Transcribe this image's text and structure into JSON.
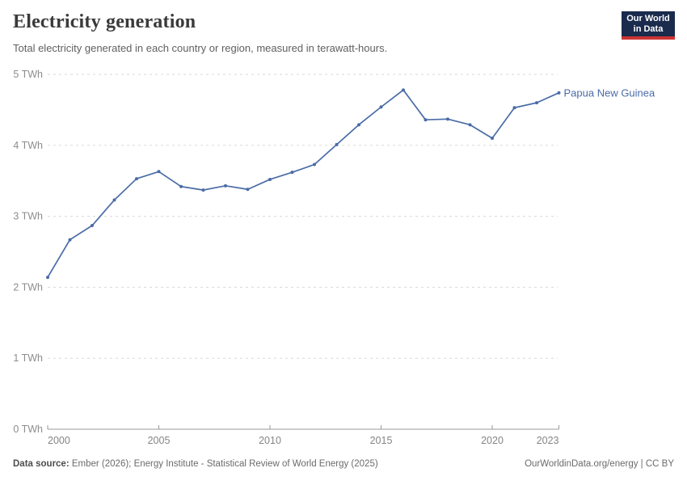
{
  "header": {
    "title": "Electricity generation",
    "subtitle": "Total electricity generated in each country or region, measured in terawatt-hours.",
    "logo": {
      "line1": "Our World",
      "line2": "in Data",
      "bg_color": "#1a2b4d",
      "accent_color": "#cc3434"
    }
  },
  "chart_data": {
    "type": "line",
    "title": "Electricity generation",
    "xlabel": "",
    "ylabel": "",
    "unit": "TWh",
    "x": [
      2000,
      2001,
      2002,
      2003,
      2004,
      2005,
      2006,
      2007,
      2008,
      2009,
      2010,
      2011,
      2012,
      2013,
      2014,
      2015,
      2016,
      2017,
      2018,
      2019,
      2020,
      2021,
      2022,
      2023
    ],
    "series": [
      {
        "name": "Papua New Guinea",
        "color": "#4a6ca6",
        "values": [
          2.14,
          2.67,
          2.87,
          3.23,
          3.53,
          3.63,
          3.42,
          3.37,
          3.43,
          3.38,
          3.52,
          3.62,
          3.73,
          4.01,
          4.29,
          4.54,
          4.78,
          4.36,
          4.37,
          4.29,
          4.1,
          4.53,
          4.6,
          4.74
        ]
      }
    ],
    "xlim": [
      2000,
      2023
    ],
    "ylim": [
      0,
      5
    ],
    "xticks": [
      2000,
      2005,
      2010,
      2015,
      2020,
      2023
    ],
    "yticks": [
      0,
      1,
      2,
      3,
      4,
      5
    ],
    "ytick_suffix": " TWh",
    "grid": "horizontal-dashed",
    "legend_position": "end-of-line-label",
    "entity_label": "Papua New Guinea",
    "axis_color": "#9a9a9a",
    "grid_color": "#dadada",
    "tick_label_color": "#858585"
  },
  "footer": {
    "source_prefix": "Data source:",
    "source_text": " Ember (2026); Energy Institute - Statistical Review of World Energy (2025)",
    "attribution": "OurWorldinData.org/energy | CC BY"
  }
}
